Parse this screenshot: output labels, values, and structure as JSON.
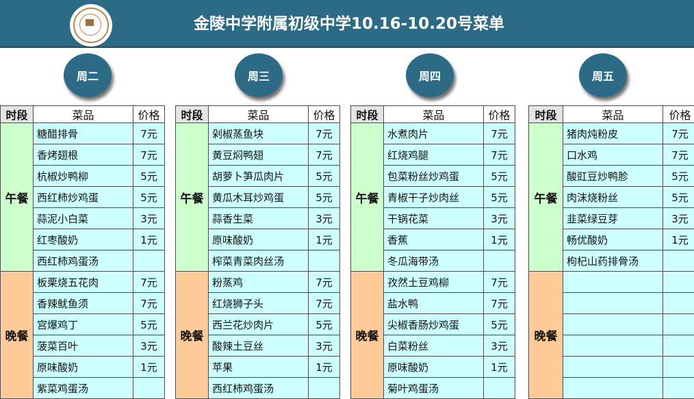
{
  "header": {
    "title": "金陵中学附属初级中学10.16-10.20号菜单"
  },
  "columns": {
    "period": "时段",
    "dish": "菜品",
    "price": "价格"
  },
  "days": [
    {
      "name": "周二",
      "lunch_label": "午餐",
      "dinner_label": "晚餐",
      "lunch": [
        {
          "dish": "糖醋排骨",
          "price": "7元"
        },
        {
          "dish": "香烤翅根",
          "price": "7元"
        },
        {
          "dish": "杭椒炒鸭柳",
          "price": "5元"
        },
        {
          "dish": "西红柿炒鸡蛋",
          "price": "5元"
        },
        {
          "dish": "蒜泥小白菜",
          "price": "3元"
        },
        {
          "dish": "红枣酸奶",
          "price": "1元"
        },
        {
          "dish": "西红柿鸡蛋汤",
          "price": ""
        }
      ],
      "dinner": [
        {
          "dish": "板栗烧五花肉",
          "price": "7元"
        },
        {
          "dish": "香辣鱿鱼须",
          "price": "7元"
        },
        {
          "dish": "宫爆鸡丁",
          "price": "5元"
        },
        {
          "dish": "菠菜百叶",
          "price": "3元"
        },
        {
          "dish": "原味酸奶",
          "price": "1元"
        },
        {
          "dish": "紫菜鸡蛋汤",
          "price": ""
        }
      ]
    },
    {
      "name": "周三",
      "lunch_label": "午餐",
      "dinner_label": "晚餐",
      "lunch": [
        {
          "dish": "剁椒蒸鱼块",
          "price": "7元"
        },
        {
          "dish": "黄豆焖鸭翅",
          "price": "7元"
        },
        {
          "dish": "胡萝卜笋瓜肉片",
          "price": "5元"
        },
        {
          "dish": "黄瓜木耳炒鸡蛋",
          "price": "5元"
        },
        {
          "dish": "蒜香生菜",
          "price": "3元"
        },
        {
          "dish": "原味酸奶",
          "price": "1元"
        },
        {
          "dish": "榨菜青菜肉丝汤",
          "price": ""
        }
      ],
      "dinner": [
        {
          "dish": "粉蒸鸡",
          "price": "7元"
        },
        {
          "dish": "红烧狮子头",
          "price": "7元"
        },
        {
          "dish": "西兰花炒肉片",
          "price": "5元"
        },
        {
          "dish": "酸辣土豆丝",
          "price": "3元"
        },
        {
          "dish": "苹果",
          "price": "1元"
        },
        {
          "dish": "西红柿鸡蛋汤",
          "price": ""
        }
      ]
    },
    {
      "name": "周四",
      "lunch_label": "午餐",
      "dinner_label": "晚餐",
      "lunch": [
        {
          "dish": "水煮肉片",
          "price": "7元"
        },
        {
          "dish": "红烧鸡腿",
          "price": "7元"
        },
        {
          "dish": "包菜粉丝炒鸡蛋",
          "price": "5元"
        },
        {
          "dish": "青椒干子炒肉丝",
          "price": "5元"
        },
        {
          "dish": "干锅花菜",
          "price": "3元"
        },
        {
          "dish": "香蕉",
          "price": "1元"
        },
        {
          "dish": "冬瓜海带汤",
          "price": ""
        }
      ],
      "dinner": [
        {
          "dish": "孜然土豆鸡柳",
          "price": "7元"
        },
        {
          "dish": "盐水鸭",
          "price": "7元"
        },
        {
          "dish": "尖椒香肠炒鸡蛋",
          "price": "5元"
        },
        {
          "dish": "白菜粉丝",
          "price": "3元"
        },
        {
          "dish": "原味酸奶",
          "price": "1元"
        },
        {
          "dish": "菊叶鸡蛋汤",
          "price": ""
        }
      ]
    },
    {
      "name": "周五",
      "lunch_label": "午餐",
      "dinner_label": "晚餐",
      "lunch": [
        {
          "dish": "猪肉炖粉皮",
          "price": "7元"
        },
        {
          "dish": "口水鸡",
          "price": "7元"
        },
        {
          "dish": "酸豇豆炒鸭胗",
          "price": "5元"
        },
        {
          "dish": "肉沫烧粉丝",
          "price": "5元"
        },
        {
          "dish": "韭菜绿豆芽",
          "price": "3元"
        },
        {
          "dish": "畅优酸奶",
          "price": "1元"
        },
        {
          "dish": "枸杞山药排骨汤",
          "price": ""
        }
      ],
      "dinner": [
        {
          "dish": "",
          "price": ""
        },
        {
          "dish": "",
          "price": ""
        },
        {
          "dish": "",
          "price": ""
        },
        {
          "dish": "",
          "price": ""
        },
        {
          "dish": "",
          "price": ""
        },
        {
          "dish": "",
          "price": ""
        }
      ]
    }
  ]
}
